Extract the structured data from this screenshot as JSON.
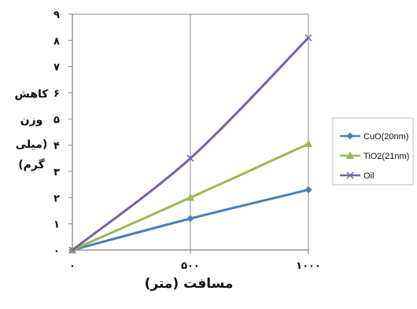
{
  "chart_data": {
    "type": "line",
    "x": [
      0,
      500,
      1000
    ],
    "x_tick_labels": [
      "٠",
      "۵٠٠",
      "١٠٠٠"
    ],
    "y_tick_labels": [
      "٠",
      "١",
      "٢",
      "٣",
      "۴",
      "۵",
      "۶",
      "٧",
      "٨",
      "٩"
    ],
    "ylim": [
      0,
      9
    ],
    "xlabel": "مسافت (متر)",
    "ylabel_lines": [
      "کاهش",
      "وزن",
      "(میلی",
      "گرم)"
    ],
    "grid": "vertical",
    "legend_position": "right",
    "series": [
      {
        "name": "CuO(20nm)",
        "color": "#4a7ebb",
        "marker": "diamond",
        "values": [
          0,
          1.2,
          2.3
        ]
      },
      {
        "name": "TiO2(21nm)",
        "color": "#98b954",
        "marker": "triangle",
        "values": [
          0,
          2.0,
          4.05
        ]
      },
      {
        "name": "Oil",
        "color": "#7d60a0",
        "marker": "x",
        "values": [
          0,
          3.5,
          8.1
        ]
      }
    ]
  }
}
